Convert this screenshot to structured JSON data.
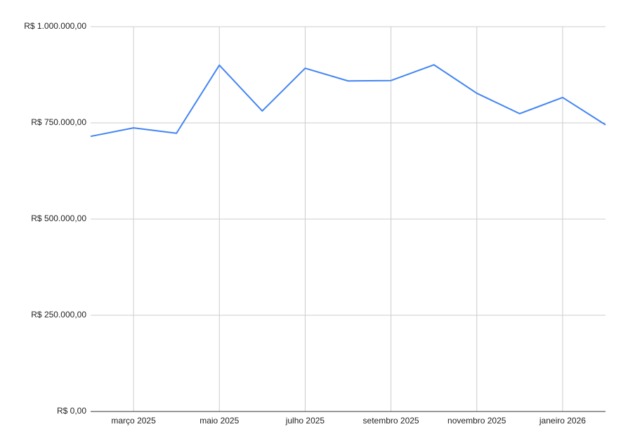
{
  "chart_data": {
    "type": "line",
    "categories": [
      null,
      "março 2025",
      null,
      "maio 2025",
      null,
      "julho 2025",
      null,
      "setembro 2025",
      null,
      "novembro 2025",
      null,
      "janeiro 2026",
      null
    ],
    "series": [
      {
        "color": "#4285f4",
        "values": [
          715000,
          737000,
          723000,
          900000,
          781000,
          892000,
          859000,
          860000,
          901000,
          827000,
          774000,
          816000,
          745000
        ]
      }
    ],
    "ylim": [
      0,
      1000000
    ],
    "yticks": [
      {
        "value": 0,
        "label": "R$ 0,00"
      },
      {
        "value": 250000,
        "label": "R$ 250.000,00"
      },
      {
        "value": 500000,
        "label": "R$ 500.000,00"
      },
      {
        "value": 750000,
        "label": "R$ 750.000,00"
      },
      {
        "value": 1000000,
        "label": "R$ 1.000.000,00"
      }
    ],
    "grid": true
  }
}
